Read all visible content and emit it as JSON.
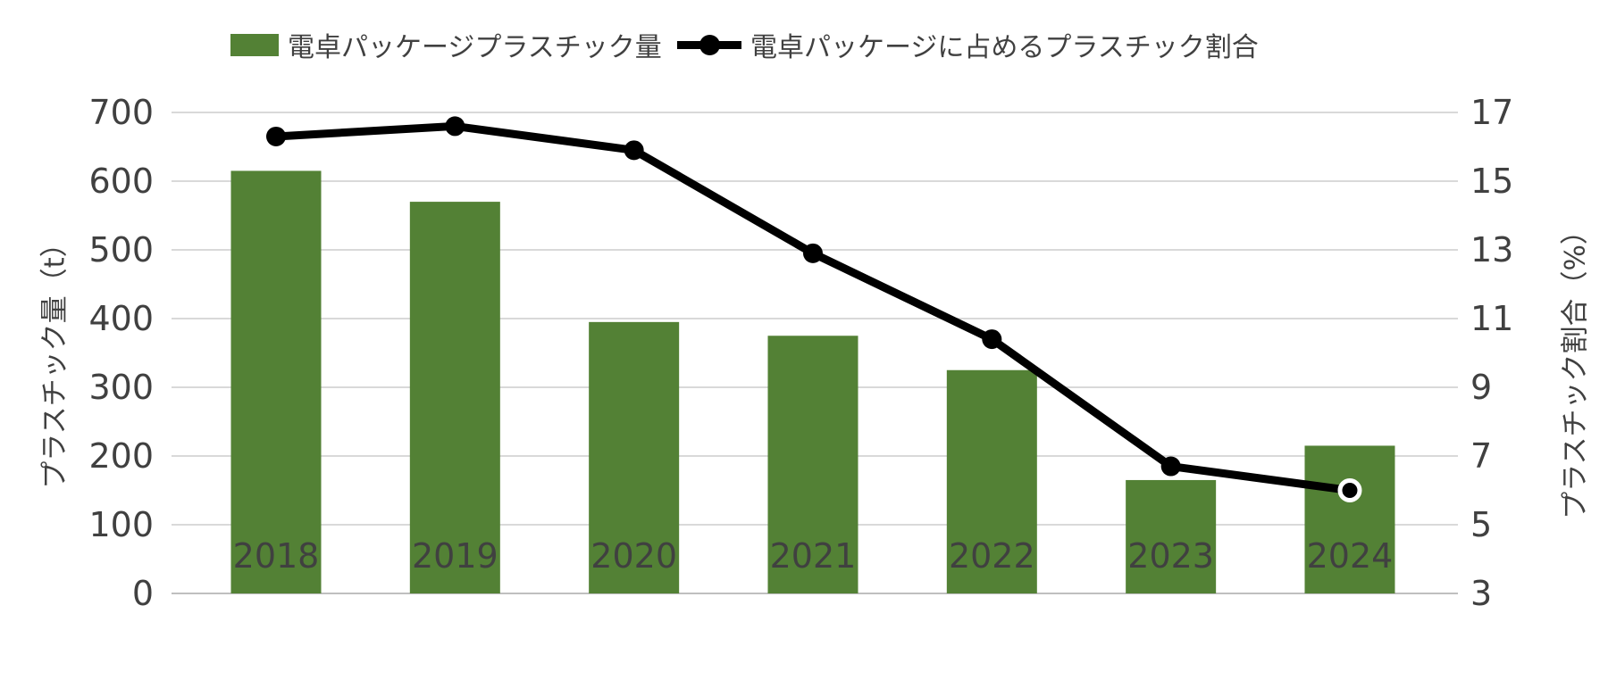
{
  "chart_data": {
    "type": "combo",
    "categories": [
      "2018",
      "2019",
      "2020",
      "2021",
      "2022",
      "2023",
      "2024"
    ],
    "series": [
      {
        "name": "電卓パッケージプラスチック量",
        "type": "bar",
        "axis": "left",
        "color": "#538135",
        "values": [
          615,
          570,
          395,
          375,
          325,
          165,
          215
        ]
      },
      {
        "name": "電卓パッケージに占めるプラスチック割合",
        "type": "line",
        "axis": "right",
        "color": "#000000",
        "values": [
          16.3,
          16.6,
          15.9,
          12.9,
          10.4,
          6.7,
          6.0
        ]
      }
    ],
    "left_axis": {
      "title": "プラスチック量（t）",
      "min": 0,
      "max": 700,
      "step": 100,
      "ticks": [
        700,
        600,
        500,
        400,
        300,
        200,
        100,
        0
      ]
    },
    "right_axis": {
      "title": "プラスチック割合（%）",
      "min": 3,
      "max": 17,
      "step": 2,
      "ticks": [
        17,
        15,
        13,
        11,
        9,
        7,
        5,
        3
      ]
    },
    "grid": true,
    "legend_position": "top",
    "last_line_marker_has_white_ring": true
  },
  "colors": {
    "bar": "#538135",
    "line": "#000000",
    "gridline": "#d9d9d9",
    "axis_line": "#bfbfbf",
    "text": "#404040",
    "background": "#ffffff"
  }
}
